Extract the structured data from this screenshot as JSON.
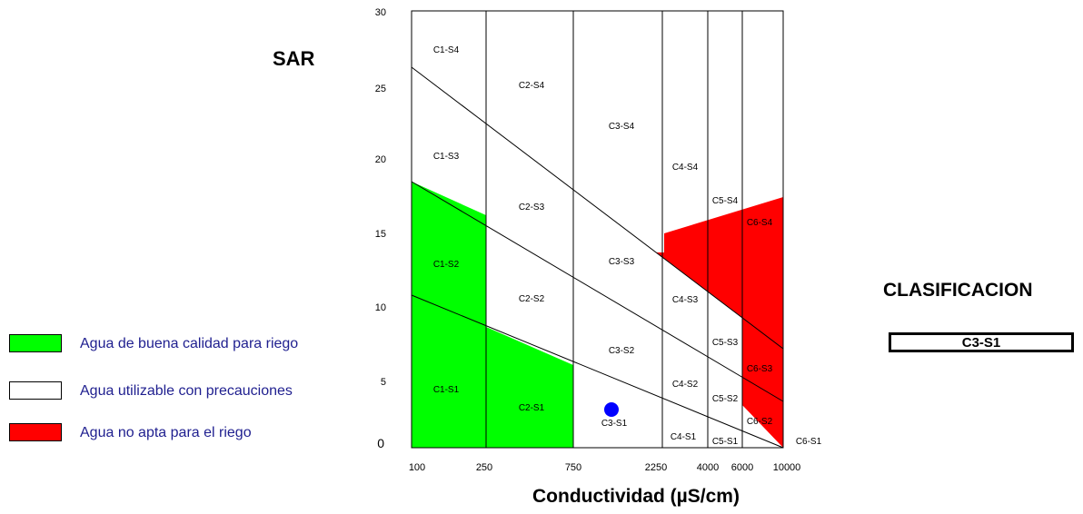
{
  "chart_data": {
    "type": "scatter",
    "ylabel": "SAR",
    "xlabel": "Conductividad (µS/cm)",
    "ylim": [
      0,
      30
    ],
    "yticks": [
      "0",
      "5",
      "10",
      "15",
      "20",
      "25",
      "30"
    ],
    "xticks": [
      "100",
      "250",
      "750",
      "2250",
      "4000",
      "6000",
      "10000"
    ],
    "zones": [
      "C1-S4",
      "C2-S4",
      "C3-S4",
      "C4-S4",
      "C5-S4",
      "C6-S4",
      "C1-S3",
      "C2-S3",
      "C3-S3",
      "C4-S3",
      "C5-S3",
      "C6-S3",
      "C1-S2",
      "C2-S2",
      "C3-S2",
      "C4-S2",
      "C5-S2",
      "C6-S2",
      "C1-S1",
      "C2-S1",
      "C3-S1",
      "C4-S1",
      "C5-S1",
      "C6-S1"
    ],
    "sample_point": {
      "conductivity": 1300,
      "sar": 2.6,
      "label": "C3-S1",
      "color": "#0000ff"
    },
    "colors": {
      "good": "#00ff00",
      "caution": "#ffffff",
      "unsuitable": "#ff0000"
    }
  },
  "legend": [
    {
      "label": "Agua de buena calidad para riego",
      "color": "#00ff00"
    },
    {
      "label": "Agua utilizable con precauciones",
      "color": "#ffffff"
    },
    {
      "label": "Agua no apta para el riego",
      "color": "#ff0000"
    }
  ],
  "classification": {
    "title": "CLASIFICACION",
    "value": "C3-S1"
  }
}
